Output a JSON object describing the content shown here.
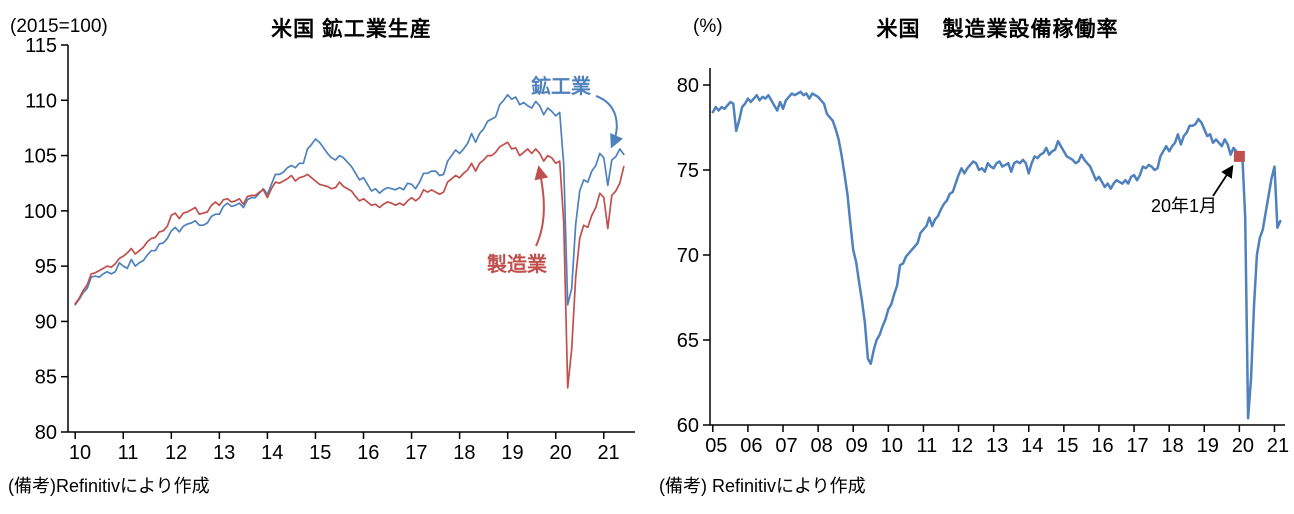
{
  "chart_data": [
    {
      "type": "line",
      "title": "米国 鉱工業生産",
      "unit_label": "(2015=100)",
      "note": "(備考)Refinitivにより作成",
      "ylim": [
        80,
        115
      ],
      "y_ticks": [
        80,
        85,
        90,
        95,
        100,
        105,
        110,
        115
      ],
      "x_domain": [
        2009.85,
        2021.65
      ],
      "x_start": 2010.0,
      "x_step_months": 1,
      "x_tick_years": [
        2010,
        2011,
        2012,
        2013,
        2014,
        2015,
        2016,
        2017,
        2018,
        2019,
        2020,
        2021
      ],
      "x_tick_labels": [
        "10",
        "11",
        "12",
        "13",
        "14",
        "15",
        "16",
        "17",
        "18",
        "19",
        "20",
        "21"
      ],
      "series": [
        {
          "name": "鉱工業",
          "color": "#4f81bd",
          "values": [
            91.5,
            92.0,
            92.6,
            93.0,
            94.0,
            94.1,
            94.0,
            94.3,
            94.5,
            94.3,
            94.5,
            95.3,
            95.0,
            94.8,
            95.6,
            95.0,
            95.3,
            95.5,
            96.0,
            96.4,
            96.4,
            97.0,
            97.1,
            97.5,
            98.2,
            98.5,
            98.1,
            98.6,
            98.8,
            98.9,
            99.1,
            98.7,
            98.7,
            98.9,
            99.5,
            99.7,
            99.7,
            100.4,
            100.7,
            100.4,
            100.5,
            100.7,
            100.3,
            101.0,
            101.2,
            101.2,
            101.6,
            102.0,
            101.5,
            102.4,
            103.3,
            103.3,
            103.5,
            103.9,
            104.1,
            103.9,
            104.3,
            104.3,
            105.6,
            106.0,
            106.5,
            106.2,
            105.7,
            105.2,
            104.8,
            104.6,
            105.0,
            104.8,
            104.4,
            104.0,
            103.4,
            102.8,
            103.0,
            102.4,
            101.8,
            102.0,
            101.6,
            101.9,
            102.1,
            102.0,
            101.9,
            102.1,
            101.9,
            102.5,
            102.4,
            102.0,
            102.6,
            103.4,
            103.4,
            103.6,
            103.6,
            103.2,
            103.3,
            104.5,
            105.0,
            105.5,
            105.2,
            105.6,
            106.1,
            107.0,
            106.2,
            107.0,
            107.4,
            108.1,
            108.3,
            108.5,
            109.6,
            110.0,
            110.5,
            110.1,
            110.3,
            109.6,
            109.8,
            109.5,
            109.3,
            109.9,
            109.5,
            108.7,
            109.3,
            109.0,
            108.6,
            108.9,
            104.2,
            91.5,
            93.0,
            98.8,
            101.8,
            102.8,
            102.6,
            103.6,
            104.1,
            105.2,
            104.8,
            102.3,
            104.6,
            104.9,
            105.6,
            105.1
          ]
        },
        {
          "name": "製造業",
          "color": "#c0504d",
          "values": [
            91.6,
            92.1,
            92.8,
            93.3,
            94.3,
            94.4,
            94.6,
            94.8,
            95.0,
            94.9,
            95.2,
            95.7,
            95.9,
            96.2,
            96.6,
            96.1,
            96.4,
            96.7,
            97.2,
            97.5,
            97.6,
            98.1,
            98.2,
            98.6,
            99.6,
            99.8,
            99.3,
            99.8,
            99.9,
            100.1,
            100.3,
            99.7,
            99.8,
            99.9,
            100.5,
            100.8,
            100.5,
            101.0,
            101.1,
            100.8,
            100.9,
            101.1,
            100.6,
            101.3,
            101.4,
            101.4,
            101.7,
            101.9,
            101.2,
            102.0,
            102.6,
            102.5,
            102.7,
            102.9,
            103.2,
            102.7,
            103.0,
            103.1,
            103.3,
            103.0,
            102.7,
            102.4,
            102.3,
            102.2,
            102.0,
            102.1,
            102.6,
            102.2,
            102.0,
            101.8,
            101.3,
            100.9,
            101.1,
            100.8,
            100.5,
            100.6,
            100.3,
            100.6,
            100.8,
            100.7,
            100.5,
            100.7,
            100.5,
            100.9,
            101.2,
            100.9,
            101.2,
            101.9,
            101.7,
            101.9,
            101.7,
            101.5,
            101.7,
            102.6,
            102.9,
            103.2,
            103.0,
            103.4,
            103.7,
            104.3,
            103.6,
            104.3,
            104.6,
            105.0,
            105.0,
            105.3,
            105.8,
            106.0,
            106.2,
            105.6,
            105.7,
            105.0,
            105.3,
            105.6,
            105.2,
            105.6,
            105.2,
            104.5,
            105.0,
            104.8,
            104.3,
            104.5,
            99.0,
            84.0,
            87.5,
            94.0,
            97.5,
            98.7,
            98.5,
            99.6,
            100.3,
            101.6,
            101.2,
            98.4,
            101.4,
            101.8,
            102.5,
            104.0
          ]
        }
      ]
    },
    {
      "type": "line",
      "title": "米国　製造業設備稼働率",
      "unit_label": "(%)",
      "note": "(備考) Refinitivにより作成",
      "ylim": [
        60,
        81
      ],
      "y_ticks": [
        60,
        65,
        70,
        75,
        80
      ],
      "x_domain": [
        2004.92,
        2021.3
      ],
      "x_start": 2005.0,
      "x_step_months": 1,
      "x_tick_years": [
        2005,
        2006,
        2007,
        2008,
        2009,
        2010,
        2011,
        2012,
        2013,
        2014,
        2015,
        2016,
        2017,
        2018,
        2019,
        2020,
        2021
      ],
      "x_tick_labels": [
        "05",
        "06",
        "07",
        "08",
        "09",
        "10",
        "11",
        "12",
        "13",
        "14",
        "15",
        "16",
        "17",
        "18",
        "19",
        "20",
        "21"
      ],
      "series": [
        {
          "name": "設備稼働率",
          "color": "#4f81bd",
          "values": [
            78.4,
            78.7,
            78.5,
            78.7,
            78.6,
            78.8,
            79.0,
            78.9,
            77.3,
            77.9,
            78.7,
            78.9,
            79.2,
            79.0,
            79.2,
            79.4,
            79.1,
            79.3,
            79.2,
            79.4,
            79.1,
            78.8,
            78.5,
            79.0,
            78.6,
            79.1,
            79.3,
            79.5,
            79.4,
            79.5,
            79.6,
            79.4,
            79.5,
            79.2,
            79.5,
            79.4,
            79.3,
            79.1,
            78.9,
            78.3,
            78.1,
            77.9,
            77.4,
            76.8,
            75.9,
            74.8,
            73.6,
            71.9,
            70.3,
            69.6,
            68.4,
            67.3,
            66.0,
            63.9,
            63.6,
            64.4,
            65.0,
            65.3,
            65.8,
            66.2,
            66.8,
            67.1,
            67.7,
            68.2,
            69.4,
            69.5,
            69.9,
            70.1,
            70.3,
            70.5,
            70.7,
            71.3,
            71.5,
            71.7,
            72.2,
            71.7,
            72.1,
            72.3,
            72.7,
            73.0,
            73.2,
            73.6,
            73.7,
            74.2,
            74.7,
            75.1,
            74.8,
            75.1,
            75.3,
            75.5,
            75.4,
            75.0,
            75.1,
            74.9,
            75.4,
            75.2,
            75.1,
            75.4,
            75.5,
            75.2,
            75.3,
            75.4,
            74.9,
            75.4,
            75.5,
            75.4,
            75.6,
            75.4,
            74.8,
            75.4,
            75.8,
            75.7,
            75.9,
            76.0,
            76.3,
            75.9,
            76.1,
            76.2,
            76.7,
            76.4,
            76.1,
            75.8,
            75.7,
            75.6,
            75.4,
            75.5,
            75.9,
            75.6,
            75.4,
            75.2,
            74.8,
            74.4,
            74.6,
            74.3,
            74.0,
            74.2,
            73.9,
            74.2,
            74.4,
            74.3,
            74.2,
            74.4,
            74.2,
            74.6,
            74.7,
            74.4,
            74.7,
            75.2,
            75.1,
            75.3,
            75.2,
            75.0,
            75.1,
            75.8,
            76.1,
            76.4,
            76.1,
            76.4,
            76.6,
            77.1,
            76.5,
            77.0,
            77.2,
            77.6,
            77.6,
            77.7,
            78.0,
            77.8,
            77.4,
            77.0,
            77.1,
            76.6,
            76.8,
            76.6,
            76.4,
            76.8,
            76.5,
            75.9,
            76.3,
            76.1,
            75.8,
            75.9,
            72.2,
            60.4,
            62.8,
            67.0,
            70.0,
            71.0,
            71.5,
            72.5,
            73.5,
            74.5,
            75.2,
            71.6,
            72.0
          ]
        }
      ],
      "marker": {
        "label": "20年1月",
        "x": 2020.0,
        "value": 75.8,
        "color": "#c0504d"
      }
    }
  ]
}
